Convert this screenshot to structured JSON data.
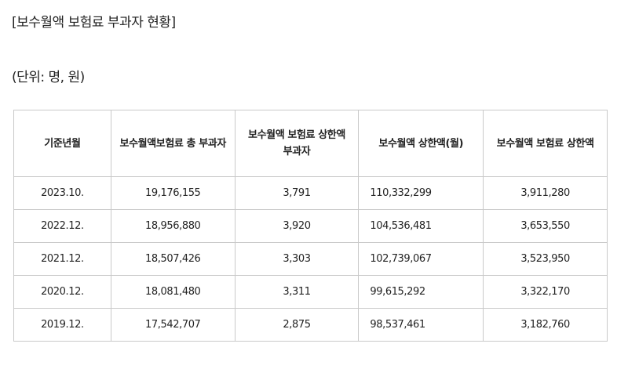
{
  "title": "[보수월액 보험료 부과자 현황]",
  "unit": "(단위: 명, 원)",
  "table": {
    "headers": [
      "기준년월",
      "보수월액보험료 총 부과자",
      "보수월액 보험료 상한액 부과자",
      "보수월액 상한액(월)",
      "보수월액 보험료 상한액"
    ],
    "rows": [
      [
        "2023.10.",
        "19,176,155",
        "3,791",
        "110,332,299",
        "3,911,280"
      ],
      [
        "2022.12.",
        "18,956,880",
        "3,920",
        "104,536,481",
        "3,653,550"
      ],
      [
        "2021.12.",
        "18,507,426",
        "3,303",
        "102,739,067",
        "3,523,950"
      ],
      [
        "2020.12.",
        "18,081,480",
        "3,311",
        "99,615,292",
        "3,322,170"
      ],
      [
        "2019.12.",
        "17,542,707",
        "2,875",
        "98,537,461",
        "3,182,760"
      ]
    ]
  }
}
